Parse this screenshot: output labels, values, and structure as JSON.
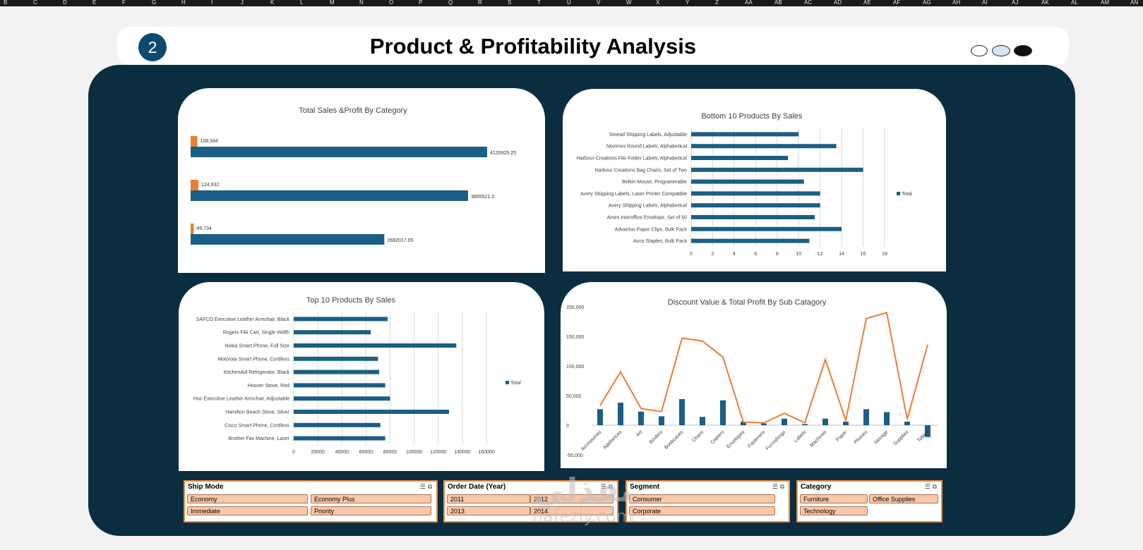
{
  "columns": [
    "B",
    "C",
    "D",
    "E",
    "F",
    "G",
    "H",
    "I",
    "J",
    "K",
    "L",
    "M",
    "N",
    "O",
    "P",
    "Q",
    "R",
    "S",
    "T",
    "U",
    "V",
    "W",
    "X",
    "Y",
    "Z",
    "AA",
    "AB",
    "AC",
    "AD",
    "AE",
    "AF",
    "AG",
    "AH",
    "AI",
    "AJ",
    "AK",
    "AL",
    "AM",
    "AN"
  ],
  "header": {
    "page_number": "2",
    "title": "Product & Profitability Analysis"
  },
  "nav_dots": [
    {
      "fill": "#ffffff"
    },
    {
      "fill": "#cfe7f7"
    },
    {
      "fill": "#111111"
    }
  ],
  "colors": {
    "navy": "#0a2d40",
    "bar": "#1b5e86",
    "orange": "#ed7d31",
    "slicer_item": "#f8c8a8",
    "slicer_border": "#f28a3a"
  },
  "chart_data": [
    {
      "id": "sales-profit-category",
      "type": "bar",
      "orientation": "horizontal",
      "title": "Total Sales &Profit By Category",
      "categories": [
        "",
        "",
        ""
      ],
      "series": [
        {
          "role": "profit",
          "values": [
            108584,
            124932,
            49734
          ],
          "labels": [
            "108,584",
            "124,932",
            "49,734"
          ]
        },
        {
          "role": "sales",
          "values": [
            4120925.25,
            3855521.3,
            2692017.05
          ],
          "labels": [
            "4120925.25",
            "3855521.3",
            "2692017.05"
          ]
        }
      ],
      "xlim": [
        0,
        4400000
      ]
    },
    {
      "id": "bottom-10-products",
      "type": "bar",
      "orientation": "horizontal",
      "title": "Bottom 10 Products By Sales",
      "categories": [
        "Smead Shipping Labels, Adjustable",
        "Novimex Round Labels, Alphabetical",
        "Harbour Creations File Folder Labels, Alphabetical",
        "Harbour Creations Bag Chairs, Set of Two",
        "Belkin Mouse, Programmable",
        "Avery Shipping Labels, Laser Printer Compatible",
        "Avery Shipping Labels, Alphabetical",
        "Ames Interoffice Envelope, Set of 50",
        "Advantus Paper Clips, Bulk Pack",
        "Acco Staples, Bulk Pack"
      ],
      "series": [
        {
          "name": "Total",
          "values": [
            10,
            13.5,
            9,
            16,
            10.5,
            12,
            12,
            11.5,
            14,
            11
          ]
        }
      ],
      "xticks": [
        "0",
        "2",
        "4",
        "6",
        "8",
        "10",
        "12",
        "14",
        "16",
        "18"
      ],
      "xlim": [
        0,
        18
      ],
      "grid": true,
      "legend": "right"
    },
    {
      "id": "top-10-products",
      "type": "bar",
      "orientation": "horizontal",
      "title": "Top 10 Products By Sales",
      "categories": [
        "SAFCO Executive Leather Armchair, Black",
        "Rogers File Cart, Single Width",
        "Nokia Smart Phone, Full Size",
        "Motorola Smart Phone, Cordless",
        "KitchenAid Refrigerator, Black",
        "Hoover Stove, Red",
        "Hon Executive Leather Armchair, Adjustable",
        "Hamilton Beach Stove, Silver",
        "Cisco Smart Phone, Cordless",
        "Brother Fax Machine, Laser"
      ],
      "series": [
        {
          "name": "Total",
          "values": [
            78000,
            64000,
            135000,
            70000,
            71000,
            76000,
            80000,
            129000,
            72000,
            76000
          ]
        }
      ],
      "xticks": [
        "0",
        "20000",
        "40000",
        "60000",
        "80000",
        "100000",
        "120000",
        "140000",
        "160000"
      ],
      "xlim": [
        0,
        160000
      ],
      "grid": true,
      "legend": "right"
    },
    {
      "id": "discount-profit-subcategory",
      "type": "line",
      "title": "Discount Value & Total Profit By Sub Catagory",
      "categories": [
        "Accessories",
        "Appliances",
        "Art",
        "Binders",
        "Bookcases",
        "Chairs",
        "Copiers",
        "Envelopes",
        "Fasteners",
        "Furnishings",
        "Labels",
        "Machines",
        "Paper",
        "Phones",
        "Storage",
        "Supplies",
        "Tables"
      ],
      "series": [
        {
          "type": "bar",
          "values": [
            27000,
            38000,
            23000,
            15000,
            44000,
            14000,
            42000,
            6000,
            3000,
            11000,
            2000,
            11000,
            6000,
            27000,
            22000,
            6000,
            -20000
          ]
        },
        {
          "type": "line",
          "values": [
            33000,
            90000,
            28000,
            23000,
            147000,
            142000,
            115000,
            5000,
            4000,
            20000,
            4000,
            111000,
            8000,
            180000,
            190000,
            10000,
            136000
          ]
        }
      ],
      "yticks": [
        "200,000",
        "150,000",
        "100,000",
        "50,000",
        "0",
        "-50,000"
      ],
      "ylim": [
        -50000,
        200000
      ]
    }
  ],
  "slicers": [
    {
      "id": "ship-mode",
      "title": "Ship Mode",
      "items": [
        "Economy",
        "Economy Plus",
        "Immediate",
        "Priority"
      ]
    },
    {
      "id": "order-date",
      "title": "Order Date (Year)",
      "items": [
        "2011",
        "2012",
        "2013",
        "2014"
      ]
    },
    {
      "id": "segment",
      "title": "Segment",
      "items": [
        "Consumer",
        "Corporate"
      ]
    },
    {
      "id": "category",
      "title": "Category",
      "items": [
        "Furniture",
        "Office Supplies",
        "Technology"
      ]
    }
  ],
  "slicer_icons": "☰ ⧉",
  "watermark": {
    "arabic": "نفذلي",
    "latin": "nafezly.com"
  }
}
